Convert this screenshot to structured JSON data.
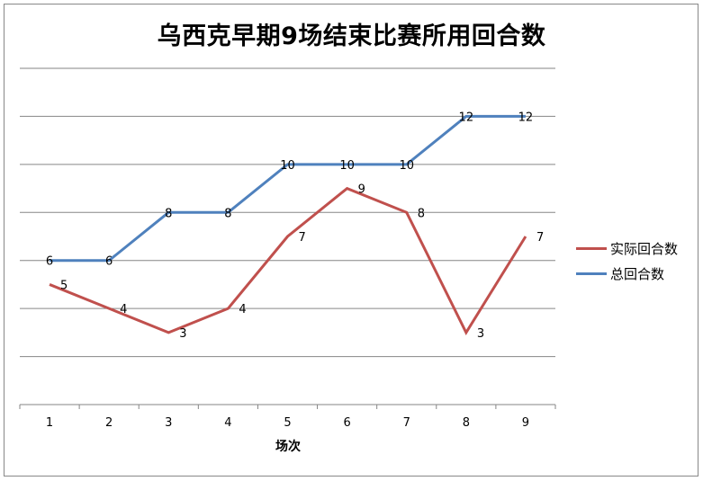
{
  "chart_data": {
    "type": "line",
    "title": "乌西克早期9场结束比赛所用回合数",
    "xlabel": "场次",
    "ylabel": "",
    "categories": [
      "1",
      "2",
      "3",
      "4",
      "5",
      "6",
      "7",
      "8",
      "9"
    ],
    "series": [
      {
        "name": "实际回合数",
        "color": "#C0504D",
        "values": [
          5,
          4,
          3,
          4,
          7,
          9,
          8,
          3,
          7
        ]
      },
      {
        "name": "总回合数",
        "color": "#4F81BD",
        "values": [
          6,
          6,
          8,
          8,
          10,
          10,
          10,
          12,
          12
        ]
      }
    ],
    "ylim": [
      0,
      14
    ],
    "y_gridlines": [
      2,
      4,
      6,
      8,
      10,
      12,
      14
    ],
    "y_tick_labels_visible": false,
    "grid": true,
    "legend_position": "right"
  }
}
